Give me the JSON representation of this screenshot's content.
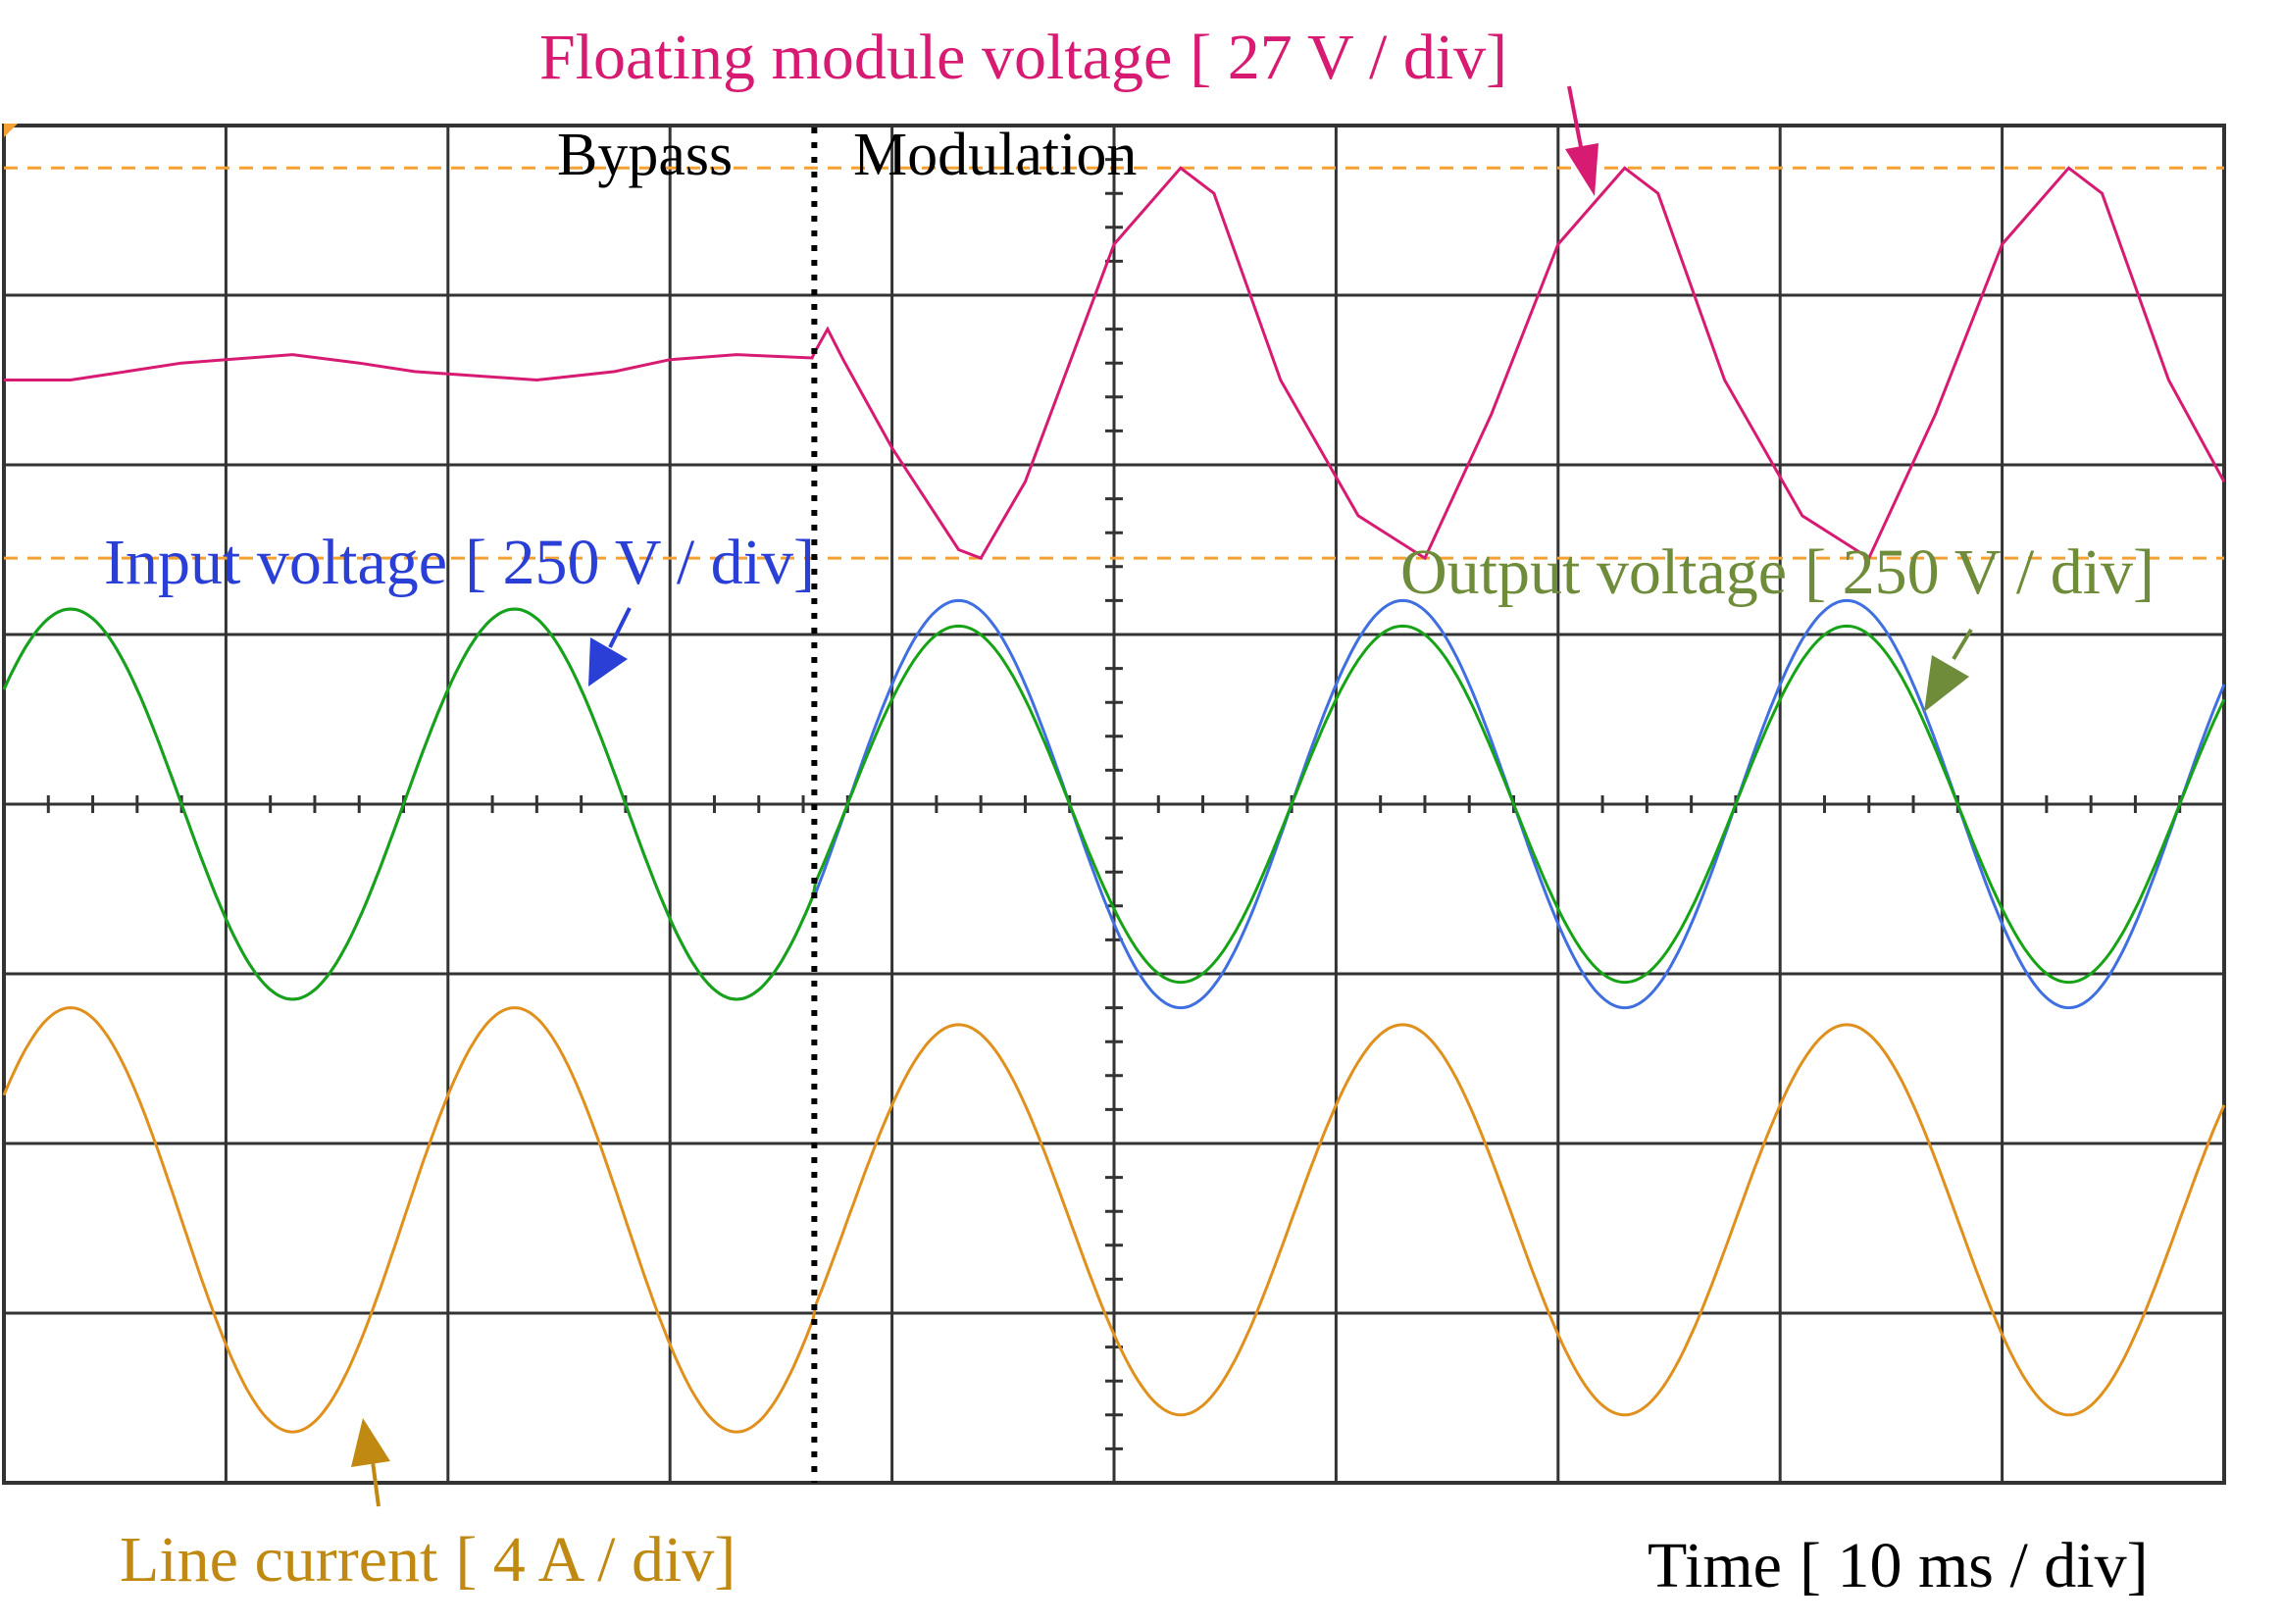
{
  "labels": {
    "floating": {
      "name": "Floating module voltage",
      "scale": "[ 27 V / div]"
    },
    "input": {
      "name": "Input voltage",
      "scale": "[ 250 V / div]"
    },
    "output": {
      "name": "Output voltage",
      "scale": "[ 250 V / div]"
    },
    "current": {
      "name": "Line current",
      "scale": "[ 4 A / div]"
    },
    "time": {
      "name": "Time",
      "scale": "[ 10 ms / div]"
    },
    "bypass": "Bypass",
    "modulation": "Modulation"
  },
  "colors": {
    "floating": "#d81b72",
    "input": "#2a3fd6",
    "input_trace": "#3f6fe0",
    "output": "#6e8c3a",
    "output_trace": "#16a316",
    "current": "#c08a12",
    "current_trace": "#e0901c",
    "reference": "#f5a032",
    "grid": "#333333",
    "text": "#000000"
  },
  "chart_data": {
    "type": "line",
    "x_divisions": 10,
    "y_divisions": 8,
    "x_unit_per_div": "10 ms",
    "x_range_div": [
      0,
      10
    ],
    "y_range_div": [
      -4,
      4
    ],
    "grid": true,
    "mode_switch_div": 3.65,
    "reference_lines_div": [
      3.75,
      1.45
    ],
    "series": [
      {
        "name": "Floating module voltage",
        "scale": "27 V / div",
        "points_div": [
          [
            0,
            2.5
          ],
          [
            0.3,
            2.5
          ],
          [
            0.55,
            2.55
          ],
          [
            0.8,
            2.6
          ],
          [
            1.3,
            2.65
          ],
          [
            1.6,
            2.6
          ],
          [
            1.85,
            2.55
          ],
          [
            2.4,
            2.5
          ],
          [
            2.75,
            2.55
          ],
          [
            3.0,
            2.62
          ],
          [
            3.3,
            2.65
          ],
          [
            3.64,
            2.63
          ],
          [
            3.65,
            2.66
          ],
          [
            3.71,
            2.8
          ],
          [
            3.78,
            2.62
          ],
          [
            4.0,
            2.1
          ],
          [
            4.3,
            1.5
          ],
          [
            4.4,
            1.45
          ],
          [
            4.6,
            1.9
          ],
          [
            5.0,
            3.3
          ],
          [
            5.3,
            3.75
          ],
          [
            5.45,
            3.6
          ],
          [
            5.75,
            2.5
          ],
          [
            6.1,
            1.7
          ],
          [
            6.4,
            1.45
          ],
          [
            6.7,
            2.3
          ],
          [
            7.0,
            3.3
          ],
          [
            7.3,
            3.75
          ],
          [
            7.45,
            3.6
          ],
          [
            7.75,
            2.5
          ],
          [
            8.1,
            1.7
          ],
          [
            8.4,
            1.45
          ],
          [
            8.7,
            2.3
          ],
          [
            9.0,
            3.3
          ],
          [
            9.3,
            3.75
          ],
          [
            9.45,
            3.6
          ],
          [
            9.75,
            2.5
          ],
          [
            10.0,
            1.9
          ]
        ]
      },
      {
        "name": "Input voltage",
        "scale": "250 V / div",
        "segments": [
          {
            "from": 0,
            "to": 3.65,
            "amplitude_div": 1.15,
            "peak_at_div": 0.3,
            "period_div": 2.0
          },
          {
            "from": 3.65,
            "to": 10.0,
            "amplitude_div": 1.2,
            "peak_at_div": 4.3,
            "period_div": 2.0
          }
        ]
      },
      {
        "name": "Output voltage",
        "scale": "250 V / div",
        "segments": [
          {
            "from": 0,
            "to": 3.65,
            "amplitude_div": 1.15,
            "peak_at_div": 0.3,
            "period_div": 2.0
          },
          {
            "from": 3.65,
            "to": 10.0,
            "amplitude_div": 1.05,
            "peak_at_div": 4.3,
            "period_div": 2.0
          }
        ]
      },
      {
        "name": "Line current",
        "scale": "4 A / div",
        "center_div": -2.45,
        "segments": [
          {
            "from": 0,
            "to": 3.65,
            "amplitude_div": 1.25,
            "peak_at_div": 0.3,
            "period_div": 2.0
          },
          {
            "from": 3.65,
            "to": 10.0,
            "amplitude_div": 1.15,
            "peak_at_div": 4.3,
            "period_div": 2.0
          }
        ]
      }
    ]
  }
}
